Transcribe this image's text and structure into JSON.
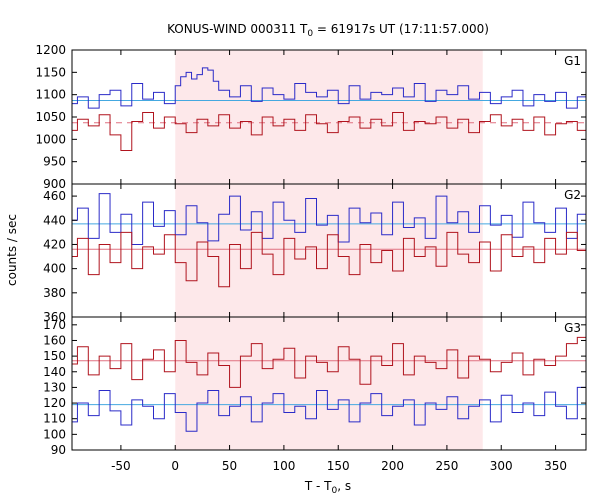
{
  "chart_data": {
    "type": "line",
    "title_main": "KONUS-WIND 000311 T",
    "title_sub": "0",
    "title_rest": " = 61917s UT (17:11:57.000)",
    "xlabel_main": "T - T",
    "xlabel_sub": "0",
    "xlabel_rest": ", s",
    "ylabel": "counts / sec",
    "xlim": [
      -95,
      378
    ],
    "xticks": [
      -50,
      0,
      50,
      100,
      150,
      200,
      250,
      300,
      350
    ],
    "xtick_labels": [
      "-50",
      "0",
      "50",
      "100",
      "150",
      "200",
      "250",
      "300",
      "350"
    ],
    "interval": [
      0,
      283
    ],
    "interval_color": "#fde8ea",
    "series_colors": [
      "#2b2bc8",
      "#b0141e"
    ],
    "background_colors": [
      "#44a8e0",
      "#e07080"
    ],
    "panels": [
      {
        "label": "G1",
        "ylim": [
          900,
          1200
        ],
        "yticks": [
          900,
          950,
          1000,
          1050,
          1100,
          1150,
          1200
        ],
        "ytick_labels": [
          "900",
          "950",
          "1000",
          "1050",
          "1100",
          "1150",
          "1200"
        ],
        "backgrounds": [
          1087,
          1037
        ],
        "series": [
          {
            "x": [
              -95,
              -90,
              -80,
              -70,
              -60,
              -50,
              -40,
              -30,
              -20,
              -10,
              0,
              5,
              10,
              15,
              20,
              25,
              30,
              35,
              40,
              50,
              60,
              70,
              80,
              90,
              100,
              110,
              120,
              130,
              140,
              150,
              160,
              170,
              180,
              190,
              200,
              210,
              220,
              230,
              240,
              250,
              260,
              270,
              280,
              290,
              300,
              310,
              320,
              330,
              340,
              350,
              360,
              370,
              378
            ],
            "values": [
              1080,
              1095,
              1070,
              1100,
              1110,
              1075,
              1125,
              1090,
              1105,
              1080,
              1120,
              1140,
              1150,
              1135,
              1145,
              1160,
              1155,
              1130,
              1110,
              1095,
              1120,
              1085,
              1115,
              1100,
              1090,
              1125,
              1105,
              1095,
              1110,
              1080,
              1120,
              1090,
              1105,
              1100,
              1115,
              1095,
              1125,
              1085,
              1110,
              1100,
              1120,
              1090,
              1105,
              1080,
              1095,
              1110,
              1075,
              1100,
              1085,
              1105,
              1070,
              1095,
              1080
            ]
          },
          {
            "x": [
              -95,
              -90,
              -80,
              -70,
              -60,
              -50,
              -40,
              -30,
              -20,
              -10,
              0,
              10,
              20,
              30,
              40,
              50,
              60,
              70,
              80,
              90,
              100,
              110,
              120,
              130,
              140,
              150,
              160,
              170,
              180,
              190,
              200,
              210,
              220,
              230,
              240,
              250,
              260,
              270,
              280,
              290,
              300,
              310,
              320,
              330,
              340,
              350,
              360,
              370,
              378
            ],
            "values": [
              1020,
              1045,
              1030,
              1055,
              1010,
              975,
              1040,
              1060,
              1025,
              1050,
              1035,
              1015,
              1045,
              1030,
              1055,
              1025,
              1040,
              1010,
              1050,
              1030,
              1045,
              1020,
              1055,
              1035,
              1015,
              1040,
              1050,
              1025,
              1045,
              1030,
              1060,
              1020,
              1040,
              1035,
              1050,
              1025,
              1045,
              1015,
              1040,
              1055,
              1030,
              1045,
              1020,
              1050,
              1010,
              1035,
              1040,
              1020,
              1030
            ]
          }
        ]
      },
      {
        "label": "G2",
        "ylim": [
          360,
          470
        ],
        "yticks": [
          360,
          380,
          400,
          420,
          440,
          460
        ],
        "ytick_labels": [
          "360",
          "380",
          "400",
          "420",
          "440",
          "460"
        ],
        "backgrounds": [
          437,
          416
        ],
        "series": [
          {
            "x": [
              -95,
              -90,
              -80,
              -70,
              -60,
              -50,
              -40,
              -30,
              -20,
              -10,
              0,
              10,
              20,
              30,
              40,
              50,
              60,
              70,
              80,
              90,
              100,
              110,
              120,
              130,
              140,
              150,
              160,
              170,
              180,
              190,
              200,
              210,
              220,
              230,
              240,
              250,
              260,
              270,
              280,
              290,
              300,
              310,
              320,
              330,
              340,
              350,
              360,
              370,
              378
            ],
            "values": [
              440,
              450,
              425,
              462,
              430,
              445,
              420,
              455,
              435,
              448,
              428,
              452,
              438,
              423,
              445,
              460,
              432,
              447,
              425,
              455,
              440,
              430,
              458,
              436,
              444,
              422,
              450,
              438,
              446,
              428,
              455,
              434,
              442,
              425,
              460,
              438,
              447,
              430,
              452,
              436,
              444,
              426,
              455,
              438,
              430,
              450,
              425,
              445,
              437
            ]
          },
          {
            "x": [
              -95,
              -90,
              -80,
              -70,
              -60,
              -50,
              -40,
              -30,
              -20,
              -10,
              0,
              10,
              20,
              30,
              40,
              50,
              60,
              70,
              80,
              90,
              100,
              110,
              120,
              130,
              140,
              150,
              160,
              170,
              180,
              190,
              200,
              210,
              220,
              230,
              240,
              250,
              260,
              270,
              280,
              290,
              300,
              310,
              320,
              330,
              340,
              350,
              360,
              370,
              378
            ],
            "values": [
              410,
              425,
              395,
              420,
              405,
              430,
              400,
              418,
              412,
              428,
              405,
              390,
              422,
              410,
              385,
              420,
              400,
              430,
              412,
              395,
              425,
              408,
              418,
              400,
              428,
              410,
              395,
              420,
              405,
              415,
              398,
              425,
              410,
              418,
              402,
              430,
              412,
              405,
              422,
              398,
              428,
              410,
              418,
              405,
              425,
              412,
              430,
              415,
              418
            ]
          }
        ]
      },
      {
        "label": "G3",
        "ylim": [
          90,
          175
        ],
        "yticks": [
          90,
          100,
          110,
          120,
          130,
          140,
          150,
          160,
          170
        ],
        "ytick_labels": [
          "90",
          "100",
          "110",
          "120",
          "130",
          "140",
          "150",
          "160",
          "170"
        ],
        "backgrounds": [
          119,
          147
        ],
        "series": [
          {
            "x": [
              -95,
              -90,
              -80,
              -70,
              -60,
              -50,
              -40,
              -30,
              -20,
              -10,
              0,
              10,
              20,
              30,
              40,
              50,
              60,
              70,
              80,
              90,
              100,
              110,
              120,
              130,
              140,
              150,
              160,
              170,
              180,
              190,
              200,
              210,
              220,
              230,
              240,
              250,
              260,
              270,
              280,
              290,
              300,
              310,
              320,
              330,
              340,
              350,
              360,
              370,
              378
            ],
            "values": [
              108,
              120,
              112,
              128,
              115,
              106,
              122,
              118,
              110,
              126,
              114,
              102,
              120,
              128,
              112,
              118,
              124,
              108,
              120,
              126,
              114,
              118,
              110,
              128,
              116,
              122,
              108,
              120,
              126,
              112,
              118,
              122,
              106,
              120,
              116,
              124,
              110,
              118,
              122,
              108,
              125,
              114,
              120,
              112,
              127,
              118,
              110,
              130,
              120
            ]
          },
          {
            "x": [
              -95,
              -90,
              -80,
              -70,
              -60,
              -50,
              -40,
              -30,
              -20,
              -10,
              0,
              10,
              20,
              30,
              40,
              50,
              60,
              70,
              80,
              90,
              100,
              110,
              120,
              130,
              140,
              150,
              160,
              170,
              180,
              190,
              200,
              210,
              220,
              230,
              240,
              250,
              260,
              270,
              280,
              290,
              300,
              310,
              320,
              330,
              340,
              350,
              360,
              370,
              378
            ],
            "values": [
              145,
              156,
              138,
              150,
              142,
              158,
              135,
              148,
              154,
              140,
              160,
              146,
              138,
              152,
              144,
              130,
              150,
              158,
              142,
              148,
              155,
              136,
              150,
              146,
              140,
              156,
              148,
              132,
              150,
              144,
              158,
              138,
              150,
              146,
              142,
              154,
              136,
              150,
              148,
              140,
              146,
              152,
              138,
              148,
              144,
              150,
              158,
              162,
              148
            ]
          }
        ]
      }
    ]
  }
}
